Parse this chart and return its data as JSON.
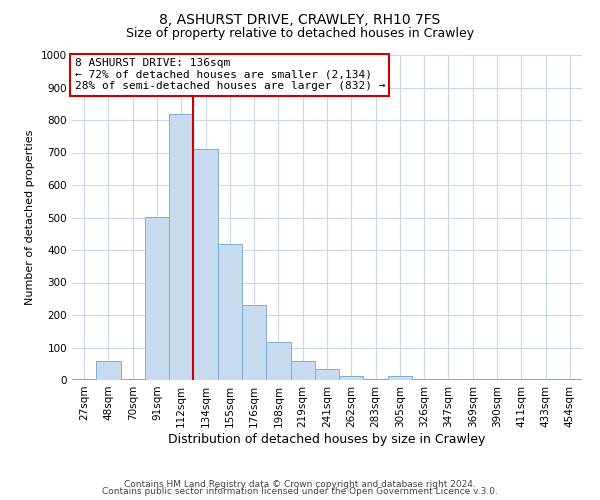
{
  "title": "8, ASHURST DRIVE, CRAWLEY, RH10 7FS",
  "subtitle": "Size of property relative to detached houses in Crawley",
  "xlabel": "Distribution of detached houses by size in Crawley",
  "ylabel": "Number of detached properties",
  "bar_labels": [
    "27sqm",
    "48sqm",
    "70sqm",
    "91sqm",
    "112sqm",
    "134sqm",
    "155sqm",
    "176sqm",
    "198sqm",
    "219sqm",
    "241sqm",
    "262sqm",
    "283sqm",
    "305sqm",
    "326sqm",
    "347sqm",
    "369sqm",
    "390sqm",
    "411sqm",
    "433sqm",
    "454sqm"
  ],
  "bar_values": [
    3,
    57,
    3,
    503,
    820,
    710,
    418,
    232,
    118,
    57,
    35,
    12,
    3,
    12,
    3,
    3,
    3,
    3,
    3,
    3,
    3
  ],
  "bar_color": "#c8daee",
  "bar_edge_color": "#7aafd4",
  "property_line_label": "8 ASHURST DRIVE: 136sqm",
  "annotation_line1": "← 72% of detached houses are smaller (2,134)",
  "annotation_line2": "28% of semi-detached houses are larger (832) →",
  "annotation_box_color": "#ffffff",
  "annotation_box_edge": "#cc0000",
  "vline_color": "#cc0000",
  "vline_xpos_index": 5,
  "ylim": [
    0,
    1000
  ],
  "yticks": [
    0,
    100,
    200,
    300,
    400,
    500,
    600,
    700,
    800,
    900,
    1000
  ],
  "footer1": "Contains HM Land Registry data © Crown copyright and database right 2024.",
  "footer2": "Contains public sector information licensed under the Open Government Licence v.3.0.",
  "bg_color": "#ffffff",
  "grid_color": "#c8d8e8",
  "title_fontsize": 10,
  "subtitle_fontsize": 9,
  "xlabel_fontsize": 9,
  "ylabel_fontsize": 8,
  "tick_fontsize": 7.5,
  "footer_fontsize": 6.5,
  "annot_fontsize": 8
}
